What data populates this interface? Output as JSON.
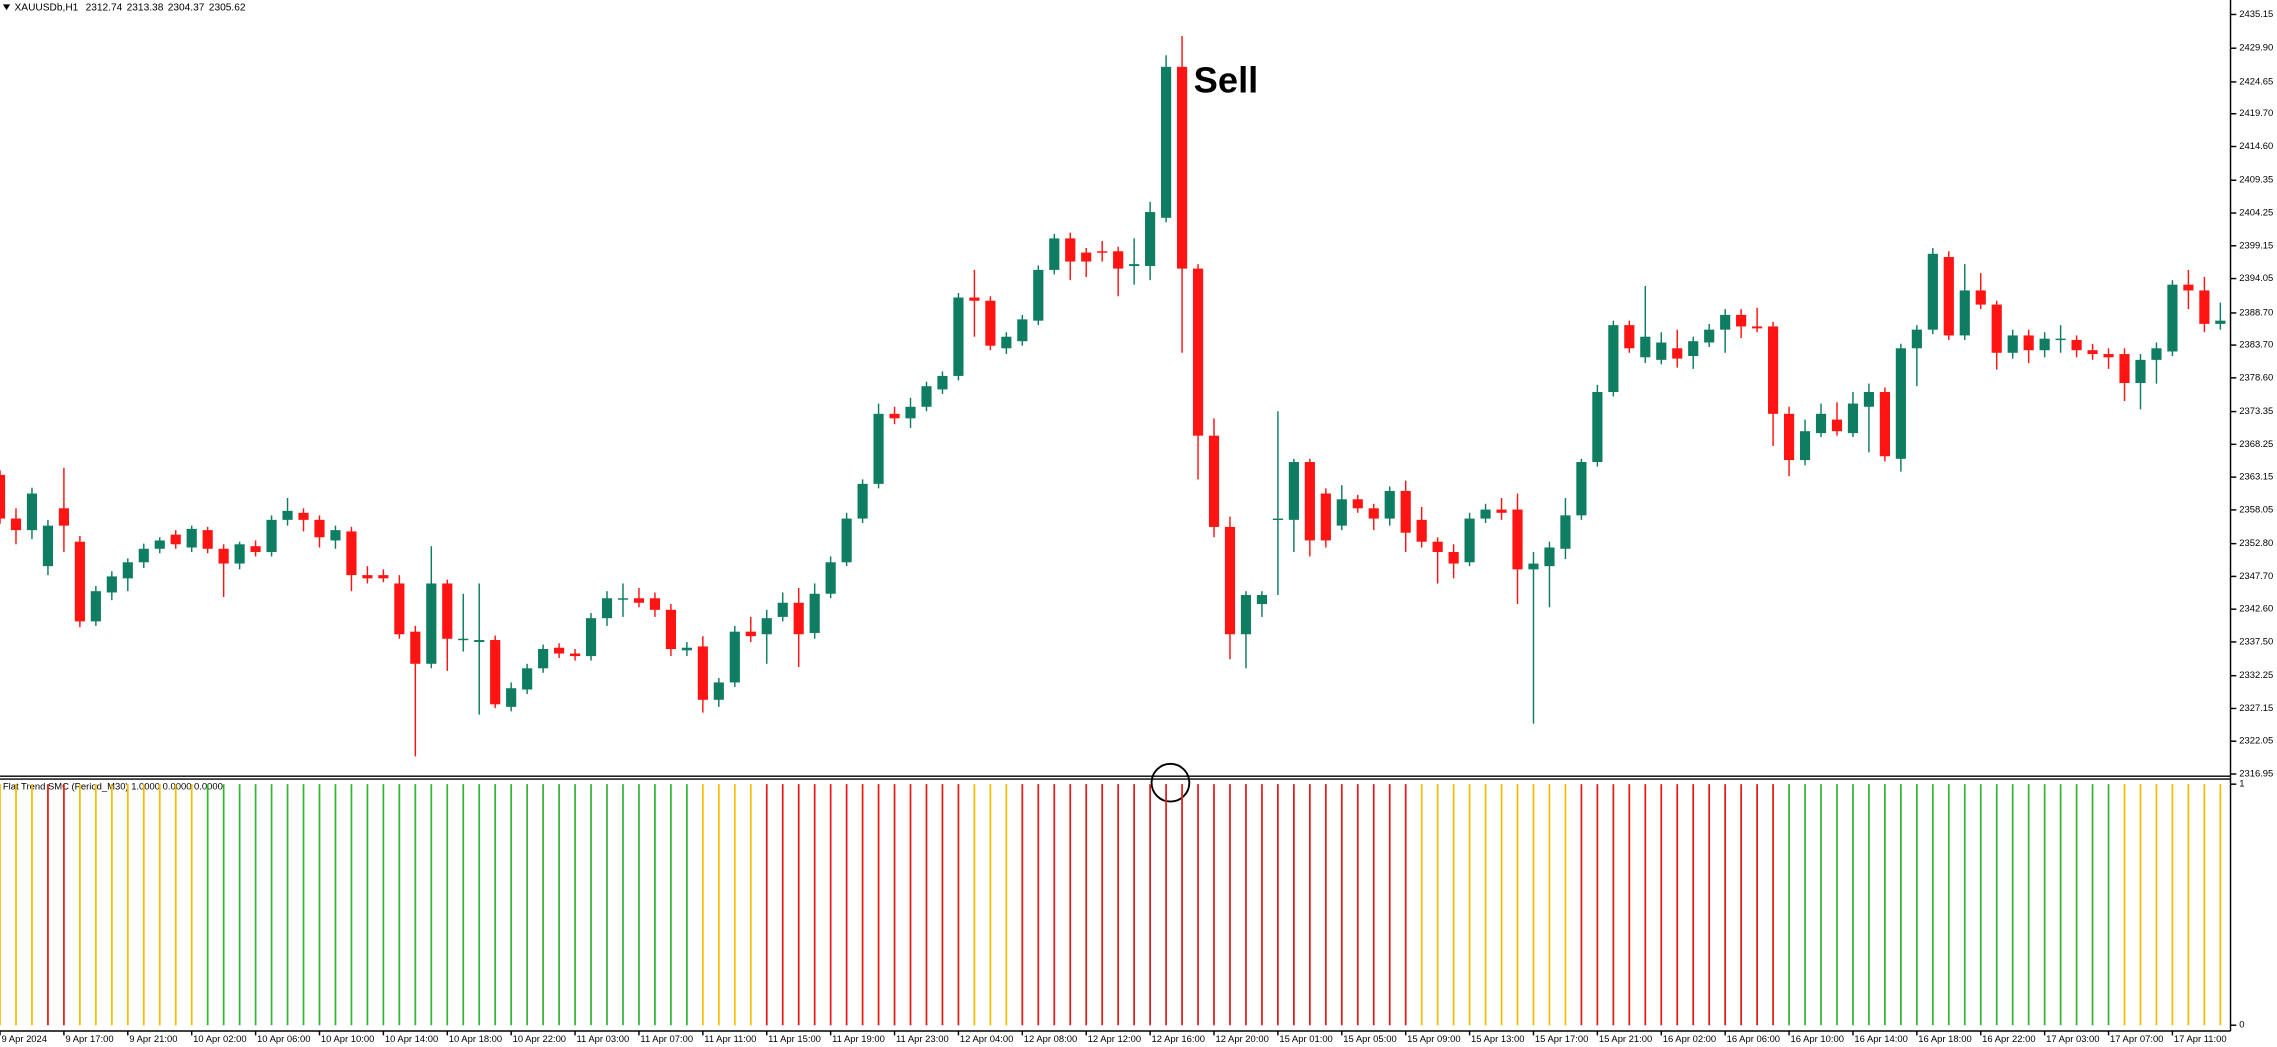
{
  "chart_data": [
    {
      "type": "candlestick",
      "symbol": "XAUUSDb,H1",
      "header_values": [
        2312.74,
        2313.38,
        2304.37,
        2305.62
      ],
      "annotation": "Sell",
      "up_color": "#0e7d62",
      "down_color": "#ff1414",
      "ylim": [
        2316.5,
        2437.4
      ],
      "yticks": [
        2435.15,
        {
          "value": 2429.9,
          "label": "2429.90"
        },
        2424.65,
        {
          "value": 2419.7,
          "label": "2419.70"
        },
        {
          "value": 2414.6,
          "label": "2414.60"
        },
        2409.35,
        2404.25,
        2399.15,
        2394.05,
        {
          "value": 2388.7,
          "label": "2388.70"
        },
        {
          "value": 2383.7,
          "label": "2383.70"
        },
        {
          "value": 2378.6,
          "label": "2378.60"
        },
        2373.35,
        2368.25,
        2363.15,
        2358.05,
        {
          "value": 2352.8,
          "label": "2352.80"
        },
        {
          "value": 2347.7,
          "label": "2347.70"
        },
        {
          "value": 2342.6,
          "label": "2342.60"
        },
        {
          "value": 2337.5,
          "label": "2337.50"
        },
        2332.25,
        2327.15,
        2322.05,
        2316.95
      ],
      "categories": [
        "9 Apr 2024",
        null,
        null,
        null,
        "9 Apr 17:00",
        null,
        null,
        null,
        "9 Apr 21:00",
        null,
        null,
        null,
        "10 Apr 02:00",
        null,
        null,
        null,
        "10 Apr 06:00",
        null,
        null,
        null,
        "10 Apr 10:00",
        null,
        null,
        null,
        "10 Apr 14:00",
        null,
        null,
        null,
        "10 Apr 18:00",
        null,
        null,
        null,
        "10 Apr 22:00",
        null,
        null,
        null,
        "11 Apr 03:00",
        null,
        null,
        null,
        "11 Apr 07:00",
        null,
        null,
        null,
        "11 Apr 11:00",
        null,
        null,
        null,
        "11 Apr 15:00",
        null,
        null,
        null,
        "11 Apr 19:00",
        null,
        null,
        null,
        "11 Apr 23:00",
        null,
        null,
        null,
        "12 Apr 04:00",
        null,
        null,
        null,
        "12 Apr 08:00",
        null,
        null,
        null,
        "12 Apr 12:00",
        null,
        null,
        null,
        "12 Apr 16:00",
        null,
        null,
        null,
        "12 Apr 20:00",
        null,
        null,
        null,
        "15 Apr 01:00",
        null,
        null,
        null,
        "15 Apr 05:00",
        null,
        null,
        null,
        "15 Apr 09:00",
        null,
        null,
        null,
        "15 Apr 13:00",
        null,
        null,
        null,
        "15 Apr 17:00",
        null,
        null,
        null,
        "15 Apr 21:00",
        null,
        null,
        null,
        "16 Apr 02:00",
        null,
        null,
        null,
        "16 Apr 06:00",
        null,
        null,
        null,
        "16 Apr 10:00",
        null,
        null,
        null,
        "16 Apr 14:00",
        null,
        null,
        null,
        "16 Apr 18:00",
        null,
        null,
        null,
        "16 Apr 22:00",
        null,
        null,
        null,
        "17 Apr 03:00",
        null,
        null,
        null,
        "17 Apr 07:00",
        null,
        null,
        null,
        "17 Apr 11:00",
        null,
        null,
        null
      ],
      "open": [
        2363.5,
        2356.7,
        2354.9,
        2349.3,
        2358.3,
        2353.1,
        2340.7,
        2345.2,
        2347.4,
        2349.9,
        2352.0,
        2354.2,
        2352.2,
        2354.9,
        2352.0,
        2349.7,
        2352.4,
        2351.5,
        2356.5,
        2357.6,
        2356.5,
        2353.3,
        2354.7,
        2347.9,
        2347.9,
        2346.6,
        2339.1,
        2334.1,
        2346.6,
        2337.8,
        2337.5,
        2337.8,
        2327.4,
        2330.1,
        2333.4,
        2336.6,
        2335.7,
        2335.3,
        2341.2,
        2344.1,
        2344.3,
        2344.3,
        2342.5,
        2336.2,
        2336.8,
        2328.5,
        2331.2,
        2339.1,
        2338.7,
        2341.4,
        2343.6,
        2338.9,
        2345.0,
        2349.9,
        2356.7,
        2362.1,
        2373.0,
        2372.3,
        2374.1,
        2376.8,
        2378.9,
        2391.1,
        2390.6,
        2383.2,
        2384.3,
        2387.5,
        2395.4,
        2400.3,
        2398.1,
        2398.3,
        2398.3,
        2396.0,
        2396.0,
        2403.5,
        2427.0,
        2395.6,
        2369.6,
        2355.4,
        2338.7,
        2343.4,
        2356.5,
        2356.5,
        2365.5,
        2360.6,
        2355.6,
        2359.7,
        2358.3,
        2356.7,
        2361.0,
        2356.5,
        2353.1,
        2351.5,
        2349.9,
        2356.7,
        2358.1,
        2358.1,
        2348.8,
        2349.3,
        2352.0,
        2357.2,
        2365.5,
        2376.4,
        2386.8,
        2381.8,
        2381.4,
        2383.2,
        2382.0,
        2384.1,
        2386.1,
        2388.4,
        2386.6,
        2386.6,
        2373.0,
        2365.8,
        2370.0,
        2372.1,
        2370.0,
        2374.1,
        2376.4,
        2366.0,
        2383.2,
        2386.1,
        2397.4,
        2385.2,
        2392.2,
        2390.0,
        2382.5,
        2385.2,
        2382.9,
        2384.5,
        2384.5,
        2382.9,
        2382.3,
        2382.3,
        2377.8,
        2381.4,
        2382.7,
        2393.1,
        2392.2,
        2387.0
      ],
      "high": [
        2364.2,
        2358.3,
        2361.5,
        2356.5,
        2364.6,
        2354.0,
        2346.2,
        2348.5,
        2350.5,
        2352.8,
        2353.8,
        2354.9,
        2355.6,
        2355.4,
        2352.7,
        2353.1,
        2353.3,
        2357.2,
        2359.9,
        2358.3,
        2357.2,
        2355.6,
        2355.4,
        2349.3,
        2348.8,
        2347.9,
        2340.0,
        2352.4,
        2347.2,
        2345.0,
        2346.6,
        2338.5,
        2331.2,
        2334.1,
        2337.1,
        2337.3,
        2336.4,
        2342.0,
        2345.4,
        2346.6,
        2345.9,
        2345.2,
        2343.4,
        2337.5,
        2338.4,
        2331.9,
        2340.0,
        2341.4,
        2342.5,
        2345.2,
        2345.9,
        2346.6,
        2350.8,
        2357.6,
        2362.8,
        2374.6,
        2374.1,
        2375.5,
        2378.0,
        2379.6,
        2391.8,
        2395.4,
        2391.3,
        2385.7,
        2388.4,
        2396.1,
        2401.0,
        2401.2,
        2398.8,
        2399.9,
        2399.0,
        2400.3,
        2406.0,
        2428.8,
        2431.8,
        2396.3,
        2372.3,
        2357.0,
        2345.4,
        2345.4,
        2373.4,
        2366.0,
        2366.0,
        2361.4,
        2361.9,
        2360.4,
        2359.0,
        2361.7,
        2362.6,
        2358.5,
        2353.8,
        2352.7,
        2357.6,
        2359.0,
        2359.9,
        2360.6,
        2351.5,
        2353.1,
        2359.9,
        2366.0,
        2377.5,
        2387.5,
        2387.5,
        2392.9,
        2385.7,
        2386.1,
        2385.0,
        2387.0,
        2389.3,
        2389.3,
        2389.5,
        2387.3,
        2374.1,
        2372.1,
        2374.6,
        2374.8,
        2376.4,
        2377.7,
        2377.1,
        2383.9,
        2386.8,
        2398.8,
        2398.3,
        2396.3,
        2394.9,
        2390.6,
        2386.1,
        2386.1,
        2385.7,
        2386.8,
        2385.2,
        2383.9,
        2383.2,
        2383.2,
        2382.3,
        2384.1,
        2393.8,
        2395.4,
        2394.3,
        2390.3
      ],
      "low": [
        2355.9,
        2352.7,
        2353.5,
        2347.9,
        2351.5,
        2339.8,
        2340.0,
        2344.0,
        2345.4,
        2349.0,
        2351.3,
        2352.0,
        2351.5,
        2351.3,
        2344.5,
        2348.8,
        2350.8,
        2350.8,
        2355.6,
        2354.7,
        2352.2,
        2352.0,
        2345.4,
        2346.6,
        2346.8,
        2338.0,
        2319.7,
        2333.4,
        2333.0,
        2336.0,
        2326.2,
        2327.2,
        2326.7,
        2329.4,
        2332.7,
        2335.0,
        2334.6,
        2334.6,
        2340.0,
        2341.4,
        2342.9,
        2341.4,
        2335.3,
        2335.3,
        2326.5,
        2327.4,
        2330.5,
        2337.5,
        2334.1,
        2340.7,
        2333.6,
        2338.0,
        2344.3,
        2349.3,
        2356.0,
        2361.4,
        2371.4,
        2370.8,
        2373.4,
        2376.1,
        2378.2,
        2385.0,
        2382.9,
        2382.3,
        2383.6,
        2386.8,
        2394.7,
        2393.8,
        2394.3,
        2396.7,
        2391.3,
        2393.1,
        2393.8,
        2402.8,
        2382.5,
        2362.8,
        2353.8,
        2334.8,
        2333.4,
        2341.4,
        2344.8,
        2351.5,
        2350.8,
        2352.2,
        2354.9,
        2357.6,
        2354.9,
        2355.6,
        2351.5,
        2352.2,
        2346.6,
        2347.4,
        2349.3,
        2356.0,
        2356.5,
        2343.4,
        2324.8,
        2342.9,
        2350.4,
        2356.5,
        2364.8,
        2375.7,
        2382.5,
        2380.9,
        2380.7,
        2380.2,
        2380.0,
        2383.4,
        2382.5,
        2384.8,
        2385.7,
        2368.0,
        2363.3,
        2365.0,
        2369.4,
        2369.6,
        2369.4,
        2367.0,
        2365.6,
        2364.0,
        2377.3,
        2385.4,
        2384.5,
        2384.5,
        2389.3,
        2379.9,
        2381.6,
        2380.9,
        2381.8,
        2382.5,
        2381.8,
        2381.4,
        2380.0,
        2375.0,
        2373.7,
        2377.7,
        2382.0,
        2389.3,
        2385.7,
        2386.1
      ],
      "close": [
        2356.7,
        2354.9,
        2360.6,
        2355.6,
        2355.6,
        2340.7,
        2345.4,
        2347.7,
        2349.9,
        2352.0,
        2353.3,
        2352.7,
        2355.1,
        2352.0,
        2349.7,
        2352.7,
        2351.5,
        2356.5,
        2357.9,
        2356.5,
        2353.8,
        2354.9,
        2347.9,
        2347.4,
        2347.4,
        2338.7,
        2334.1,
        2346.6,
        2338.0,
        2338.0,
        2337.8,
        2327.8,
        2330.3,
        2333.4,
        2336.4,
        2335.7,
        2335.3,
        2341.2,
        2344.3,
        2344.3,
        2343.6,
        2342.5,
        2336.4,
        2336.6,
        2328.5,
        2331.2,
        2339.1,
        2338.4,
        2341.2,
        2343.6,
        2338.7,
        2345.0,
        2349.9,
        2356.7,
        2362.1,
        2373.0,
        2372.3,
        2374.1,
        2377.3,
        2378.9,
        2391.1,
        2390.6,
        2383.6,
        2385.0,
        2387.7,
        2395.4,
        2400.3,
        2396.7,
        2396.7,
        2398.1,
        2395.6,
        2396.3,
        2404.4,
        2427.0,
        2395.6,
        2369.6,
        2355.4,
        2338.7,
        2344.8,
        2344.8,
        2356.7,
        2365.5,
        2353.3,
        2353.3,
        2359.7,
        2358.3,
        2356.7,
        2361.0,
        2354.5,
        2353.1,
        2351.5,
        2349.7,
        2356.7,
        2358.1,
        2357.6,
        2348.8,
        2349.7,
        2352.2,
        2357.2,
        2365.5,
        2376.4,
        2386.8,
        2383.2,
        2385.0,
        2384.1,
        2381.6,
        2384.3,
        2386.1,
        2388.4,
        2386.6,
        2386.3,
        2373.0,
        2365.8,
        2370.3,
        2373.0,
        2370.3,
        2374.6,
        2376.4,
        2366.4,
        2383.2,
        2386.1,
        2397.9,
        2385.2,
        2392.2,
        2390.0,
        2382.5,
        2385.2,
        2382.9,
        2384.7,
        2384.7,
        2382.9,
        2382.3,
        2381.8,
        2377.8,
        2381.4,
        2383.2,
        2393.1,
        2392.2,
        2387.0,
        2387.5
      ]
    },
    {
      "type": "bar",
      "label": "Flat Trend SMC (Period_M30) 1.0000 0.0000 0.0000",
      "ylim": [
        0,
        1
      ],
      "yticks": [
        0,
        1
      ],
      "values": [
        1,
        1,
        1,
        1,
        1,
        1,
        1,
        1,
        1,
        1,
        1,
        1,
        1,
        1,
        1,
        1,
        1,
        1,
        1,
        1,
        1,
        1,
        1,
        1,
        1,
        1,
        1,
        1,
        1,
        1,
        1,
        1,
        1,
        1,
        1,
        1,
        1,
        1,
        1,
        1,
        1,
        1,
        1,
        1,
        1,
        1,
        1,
        1,
        1,
        1,
        1,
        1,
        1,
        1,
        1,
        1,
        1,
        1,
        1,
        1,
        1,
        1,
        1,
        1,
        1,
        1,
        1,
        1,
        1,
        1,
        1,
        1,
        1,
        1,
        1,
        1,
        1,
        1,
        1,
        1,
        1,
        1,
        1,
        1,
        1,
        1,
        1,
        1,
        1,
        1,
        1,
        1,
        1,
        1,
        1,
        1,
        1,
        1,
        1,
        1,
        1,
        1,
        1,
        1,
        1,
        1,
        1,
        1,
        1,
        1,
        1,
        1,
        1,
        1,
        1,
        1,
        1,
        1,
        1,
        1,
        1,
        1,
        1,
        1,
        1,
        1,
        1,
        1,
        1,
        1,
        1,
        1,
        1,
        1,
        1,
        1,
        1,
        1,
        1,
        1
      ],
      "colors": [
        "#f2be00",
        "#f2be00",
        "#f2be00",
        "#e41b1b",
        "#e41b1b",
        "#f2be00",
        "#f2be00",
        "#f2be00",
        "#f2be00",
        "#f2be00",
        "#f2be00",
        "#f2be00",
        "#f2be00",
        "#35b535",
        "#35b535",
        "#35b535",
        "#35b535",
        "#35b535",
        "#35b535",
        "#35b535",
        "#35b535",
        "#35b535",
        "#35b535",
        "#35b535",
        "#35b535",
        "#35b535",
        "#35b535",
        "#35b535",
        "#35b535",
        "#35b535",
        "#35b535",
        "#35b535",
        "#35b535",
        "#35b535",
        "#35b535",
        "#35b535",
        "#35b535",
        "#35b535",
        "#35b535",
        "#35b535",
        "#35b535",
        "#35b535",
        "#35b535",
        "#35b535",
        "#f2be00",
        "#f2be00",
        "#f2be00",
        "#f2be00",
        "#e41b1b",
        "#e41b1b",
        "#e41b1b",
        "#e41b1b",
        "#e41b1b",
        "#e41b1b",
        "#e41b1b",
        "#e41b1b",
        "#e41b1b",
        "#e41b1b",
        "#e41b1b",
        "#e41b1b",
        "#e41b1b",
        "#f2be00",
        "#f2be00",
        "#f2be00",
        "#e41b1b",
        "#e41b1b",
        "#e41b1b",
        "#e41b1b",
        "#e41b1b",
        "#e41b1b",
        "#e41b1b",
        "#e41b1b",
        "#e41b1b",
        "#e41b1b",
        "#e41b1b",
        "#e41b1b",
        "#e41b1b",
        "#e41b1b",
        "#e41b1b",
        "#e41b1b",
        "#e41b1b",
        "#e41b1b",
        "#e41b1b",
        "#e41b1b",
        "#e41b1b",
        "#e41b1b",
        "#e41b1b",
        "#e41b1b",
        "#e41b1b",
        "#f2be00",
        "#f2be00",
        "#f2be00",
        "#f2be00",
        "#f2be00",
        "#f2be00",
        "#f2be00",
        "#f2be00",
        "#f2be00",
        "#f2be00",
        "#e41b1b",
        "#e41b1b",
        "#e41b1b",
        "#e41b1b",
        "#e41b1b",
        "#e41b1b",
        "#e41b1b",
        "#e41b1b",
        "#e41b1b",
        "#e41b1b",
        "#e41b1b",
        "#e41b1b",
        "#e41b1b",
        "#35b535",
        "#35b535",
        "#35b535",
        "#35b535",
        "#35b535",
        "#35b535",
        "#35b535",
        "#35b535",
        "#35b535",
        "#35b535",
        "#35b535",
        "#35b535",
        "#35b535",
        "#35b535",
        "#35b535",
        "#35b535",
        "#35b535",
        "#35b535",
        "#35b535",
        "#35b535",
        "#35b535",
        "#f2be00",
        "#f2be00",
        "#f2be00",
        "#f2be00",
        "#f2be00",
        "#f2be00",
        "#f2be00"
      ]
    }
  ]
}
